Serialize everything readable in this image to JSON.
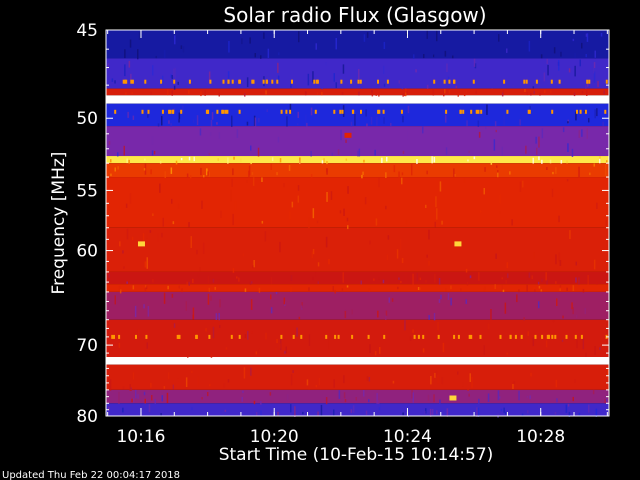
{
  "chart_data": {
    "type": "heatmap",
    "title": "Solar radio Flux (Glasgow)",
    "xlabel": "Start Time (10-Feb-15 10:14:57)",
    "ylabel": "Frequency [MHz]",
    "x_ticks": [
      "10:16",
      "10:20",
      "10:24",
      "10:28"
    ],
    "x_tick_values_min": [
      1.05,
      5.05,
      9.05,
      13.05
    ],
    "y_ticks": [
      45,
      50,
      55,
      60,
      70,
      80
    ],
    "xlim_min": [
      0,
      15.1
    ],
    "ylim": [
      45,
      80
    ],
    "y_scale": "reciprocal",
    "grid": false,
    "colormap": "blue-red-yellow-white",
    "colors": {
      "low": "#2030d0",
      "mid": "#d01000",
      "high": "#ffffff",
      "background": "#000000"
    },
    "bands": [
      {
        "f_from": 45,
        "f_to": 46.5,
        "level": 0.05
      },
      {
        "f_from": 46.5,
        "f_to": 48.2,
        "level": 0.18
      },
      {
        "f_from": 48.2,
        "f_to": 48.6,
        "level": 0.55
      },
      {
        "f_from": 48.6,
        "f_to": 49.1,
        "level": 1.0
      },
      {
        "f_from": 49.1,
        "f_to": 50.5,
        "level": 0.12
      },
      {
        "f_from": 50.5,
        "f_to": 52.5,
        "level": 0.28
      },
      {
        "f_from": 52.5,
        "f_to": 53.0,
        "level": 0.92
      },
      {
        "f_from": 53.0,
        "f_to": 54.0,
        "level": 0.68
      },
      {
        "f_from": 54.0,
        "f_to": 58.0,
        "level": 0.62
      },
      {
        "f_from": 58.0,
        "f_to": 62.0,
        "level": 0.57
      },
      {
        "f_from": 62.0,
        "f_to": 63.2,
        "level": 0.47
      },
      {
        "f_from": 63.2,
        "f_to": 64.0,
        "level": 0.62
      },
      {
        "f_from": 64.0,
        "f_to": 67.0,
        "level": 0.36
      },
      {
        "f_from": 67.0,
        "f_to": 71.5,
        "level": 0.52
      },
      {
        "f_from": 71.5,
        "f_to": 72.5,
        "level": 1.0
      },
      {
        "f_from": 72.5,
        "f_to": 76.0,
        "level": 0.55
      },
      {
        "f_from": 76.0,
        "f_to": 78.0,
        "level": 0.33
      },
      {
        "f_from": 78.0,
        "f_to": 80.0,
        "level": 0.18
      }
    ],
    "bursts": [
      {
        "t_min": 1.05,
        "f_mhz": 59.4,
        "level": 0.9
      },
      {
        "t_min": 10.55,
        "f_mhz": 59.4,
        "level": 0.9
      },
      {
        "t_min": 10.4,
        "f_mhz": 77.2,
        "level": 0.9
      },
      {
        "t_min": 7.25,
        "f_mhz": 51.1,
        "level": 0.6
      }
    ]
  },
  "footer": {
    "updated": "Updated Thu Feb 22 00:04:17 2018"
  }
}
